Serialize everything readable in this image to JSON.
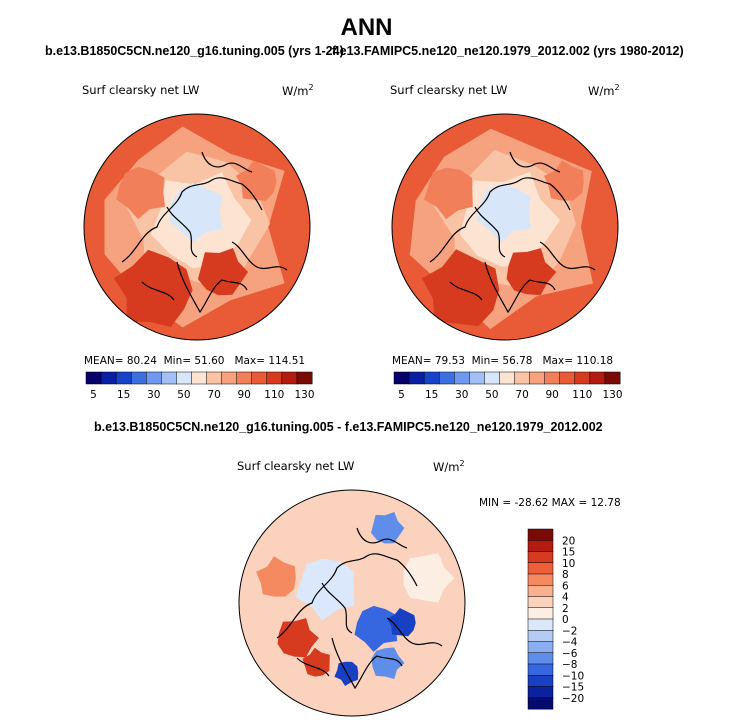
{
  "chart_data": [
    {
      "type": "heatmap",
      "projection": "north-polar-stereographic",
      "suptitle": "ANN",
      "title": "b.e13.B1850C5CN.ne120_g16.tuning.005 (yrs 1-24)",
      "variable": "Surf clearsky net LW",
      "units": "W/m",
      "units_exp": "2",
      "stats": {
        "mean_label": "MEAN=",
        "mean": "80.24",
        "min_label": "Min=",
        "min": "51.60",
        "max_label": "Max=",
        "max": "114.51"
      },
      "colorbar_ticks": [
        "5",
        "15",
        "30",
        "50",
        "70",
        "90",
        "110",
        "130"
      ],
      "colorbar_levels": [
        5,
        10,
        15,
        20,
        30,
        40,
        50,
        60,
        70,
        80,
        90,
        100,
        110,
        120,
        130
      ]
    },
    {
      "type": "heatmap",
      "projection": "north-polar-stereographic",
      "title": "f.e13.FAMIPC5.ne120_ne120.1979_2012.002 (yrs 1980-2012)",
      "variable": "Surf clearsky net LW",
      "units": "W/m",
      "units_exp": "2",
      "stats": {
        "mean_label": "MEAN=",
        "mean": "79.53",
        "min_label": "Min=",
        "min": "56.78",
        "max_label": "Max=",
        "max": "110.18"
      },
      "colorbar_ticks": [
        "5",
        "15",
        "30",
        "50",
        "70",
        "90",
        "110",
        "130"
      ],
      "colorbar_levels": [
        5,
        10,
        15,
        20,
        30,
        40,
        50,
        60,
        70,
        80,
        90,
        100,
        110,
        120,
        130
      ]
    },
    {
      "type": "heatmap",
      "projection": "north-polar-stereographic",
      "title": "b.e13.B1850C5CN.ne120_g16.tuning.005 - f.e13.FAMIPC5.ne120_ne120.1979_2012.002",
      "variable": "Surf clearsky net LW",
      "units": "W/m",
      "units_exp": "2",
      "minmax_text": "MIN = -28.62 MAX =  12.78",
      "colorbar_ticks": [
        "20",
        "15",
        "10",
        "8",
        "6",
        "4",
        "2",
        "0",
        "−2",
        "−4",
        "−6",
        "−8",
        "−10",
        "−15",
        "−20"
      ]
    }
  ],
  "colors": {
    "seq": [
      "#08006b",
      "#0a1fa3",
      "#1743c9",
      "#3c6fe0",
      "#6f99ee",
      "#a3bff5",
      "#d8e6fa",
      "#fde4d2",
      "#f9c3a5",
      "#f6a27f",
      "#f17f5a",
      "#e95a37",
      "#d63a1f",
      "#b31b10",
      "#7a0a06"
    ],
    "div": [
      "#7a0a06",
      "#b31b10",
      "#d63a1f",
      "#ec5f3a",
      "#f58a61",
      "#f8b08e",
      "#fbd2bd",
      "#fdeee3",
      "#dbe8fb",
      "#b4ccf4",
      "#8aaef0",
      "#5e8eea",
      "#3667e0",
      "#1740c3",
      "#0b21a0",
      "#050b6e"
    ]
  }
}
